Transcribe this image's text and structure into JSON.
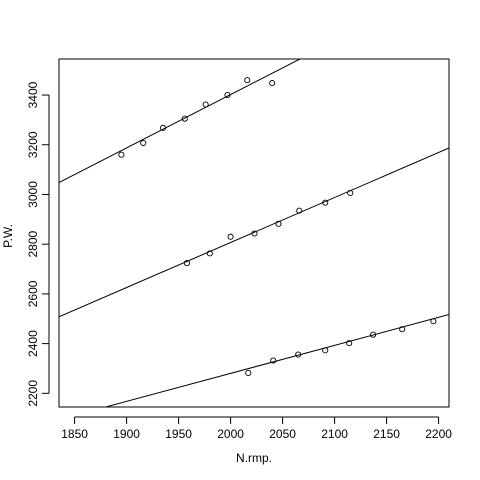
{
  "chart_data": {
    "type": "scatter",
    "title": "",
    "xlabel": "N.rmp.",
    "ylabel": "P.W.",
    "xlim": [
      1835,
      2210
    ],
    "ylim": [
      2145,
      3545
    ],
    "x_ticks": [
      1850,
      1900,
      1950,
      2000,
      2050,
      2100,
      2150,
      2200
    ],
    "y_ticks": [
      2200,
      2400,
      2600,
      2800,
      3000,
      3200,
      3400
    ],
    "x_tick_labels": [
      "1850",
      "1900",
      "1950",
      "2000",
      "2050",
      "2100",
      "2150",
      "2200"
    ],
    "y_tick_labels": [
      "2200",
      "2400",
      "2600",
      "2800",
      "3000",
      "3200",
      "3400"
    ],
    "grid": false,
    "legend": "none",
    "colors": {
      "points": "#000000",
      "lines": "#000000",
      "frame": "#000000",
      "background": "#ffffff"
    },
    "series": [
      {
        "points": [
          [
            1895,
            3160
          ],
          [
            1916,
            3207
          ],
          [
            1935,
            3268
          ],
          [
            1956,
            3305
          ],
          [
            1976,
            3362
          ],
          [
            1997,
            3400
          ],
          [
            2016,
            3460
          ],
          [
            2040,
            3448
          ]
        ],
        "fit_line": [
          [
            1835,
            3048
          ],
          [
            2070,
            3552
          ]
        ]
      },
      {
        "points": [
          [
            1958,
            2724
          ],
          [
            1980,
            2763
          ],
          [
            2000,
            2830
          ],
          [
            2023,
            2843
          ],
          [
            2046,
            2882
          ],
          [
            2066,
            2935
          ],
          [
            2091,
            2967
          ],
          [
            2115,
            3006
          ]
        ],
        "fit_line": [
          [
            1835,
            2508
          ],
          [
            2210,
            3187
          ]
        ]
      },
      {
        "points": [
          [
            2017,
            2282
          ],
          [
            2041,
            2332
          ],
          [
            2065,
            2356
          ],
          [
            2091,
            2373
          ],
          [
            2114,
            2402
          ],
          [
            2137,
            2436
          ],
          [
            2165,
            2458
          ],
          [
            2195,
            2490
          ]
        ],
        "fit_line": [
          [
            1880,
            2145
          ],
          [
            2210,
            2517
          ]
        ]
      }
    ]
  }
}
